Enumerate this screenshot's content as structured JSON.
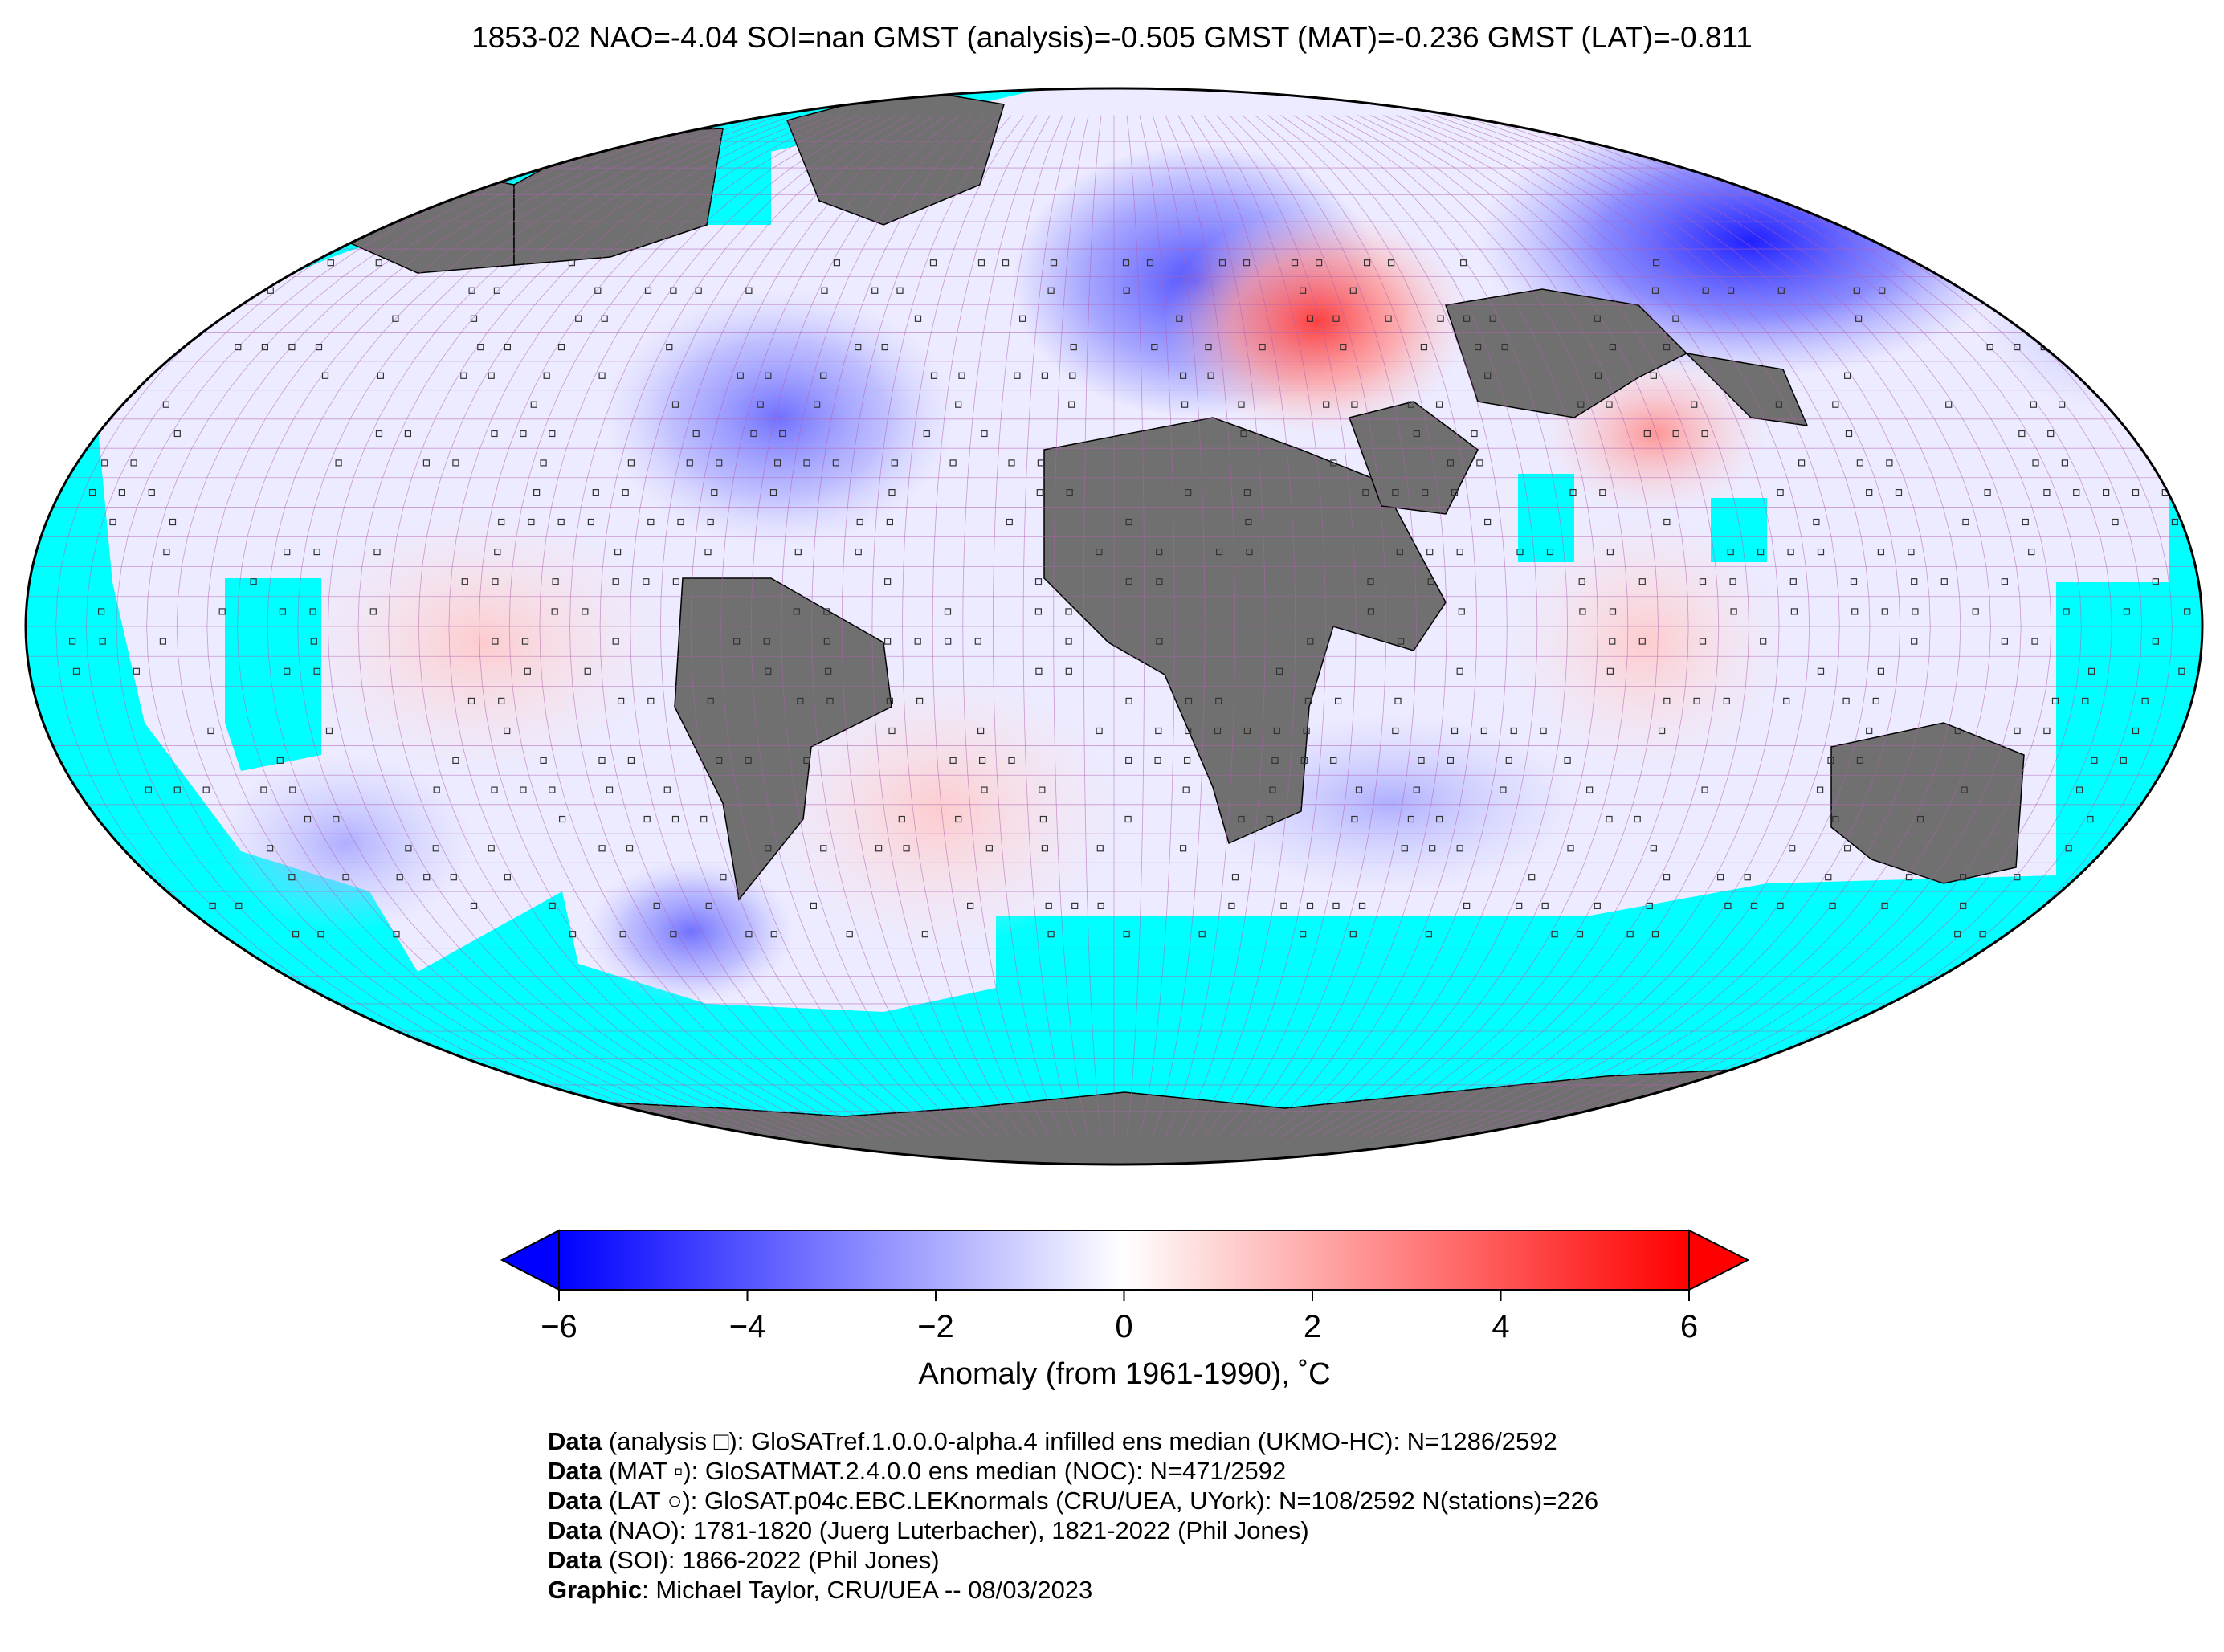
{
  "title": "1853-02 NAO=-4.04 SOI=nan GMST (analysis)=-0.505 GMST (MAT)=-0.236 GMST (LAT)=-0.811",
  "map": {
    "projection": "Robinson",
    "colors": {
      "ocean_no_data": "#00ffff",
      "land_no_data": "#707070",
      "grid_line": "#b060b0",
      "coast": "#000000"
    },
    "anomaly_regions": [
      {
        "region": "Western Europe / Scandinavia",
        "anomaly_c": -3.5
      },
      {
        "region": "Black Sea / Anatolia",
        "anomaly_c": 4.0
      },
      {
        "region": "Eastern Siberia",
        "anomaly_c": -5.0
      },
      {
        "region": "North Atlantic",
        "anomaly_c": -3.0
      },
      {
        "region": "Indian subcontinent",
        "anomaly_c": 2.0
      },
      {
        "region": "Central Pacific",
        "anomaly_c": 0.8
      },
      {
        "region": "Southern Indian Ocean",
        "anomaly_c": -1.5
      },
      {
        "region": "South Atlantic",
        "anomaly_c": 1.0
      }
    ]
  },
  "colorbar": {
    "min": -6,
    "max": 6,
    "ticks": [
      "−6",
      "−4",
      "−2",
      "0",
      "2",
      "4",
      "6"
    ],
    "tick_values": [
      -6,
      -4,
      -2,
      0,
      2,
      4,
      6
    ],
    "label": "Anomaly (from 1961-1990), ˚C",
    "extend": "both",
    "colors": {
      "low": "#0000ff",
      "mid": "#ffffff",
      "high": "#ff0000"
    }
  },
  "credits": [
    {
      "bold": "Data",
      "text": " (analysis □): GloSATref.1.0.0.0-alpha.4 infilled ens median (UKMO-HC): N=1286/2592"
    },
    {
      "bold": "Data",
      "text": " (MAT ▫): GloSATMAT.2.4.0.0 ens median (NOC): N=471/2592"
    },
    {
      "bold": "Data",
      "text": " (LAT ○): GloSAT.p04c.EBC.LEKnormals (CRU/UEA, UYork): N=108/2592 N(stations)=226"
    },
    {
      "bold": "Data",
      "text": " (NAO): 1781-1820 (Juerg Luterbacher), 1821-2022 (Phil Jones)"
    },
    {
      "bold": "Data",
      "text": " (SOI): 1866-2022 (Phil Jones)"
    },
    {
      "bold": "Graphic",
      "text": ": Michael Taylor, CRU/UEA -- 08/03/2023"
    }
  ]
}
